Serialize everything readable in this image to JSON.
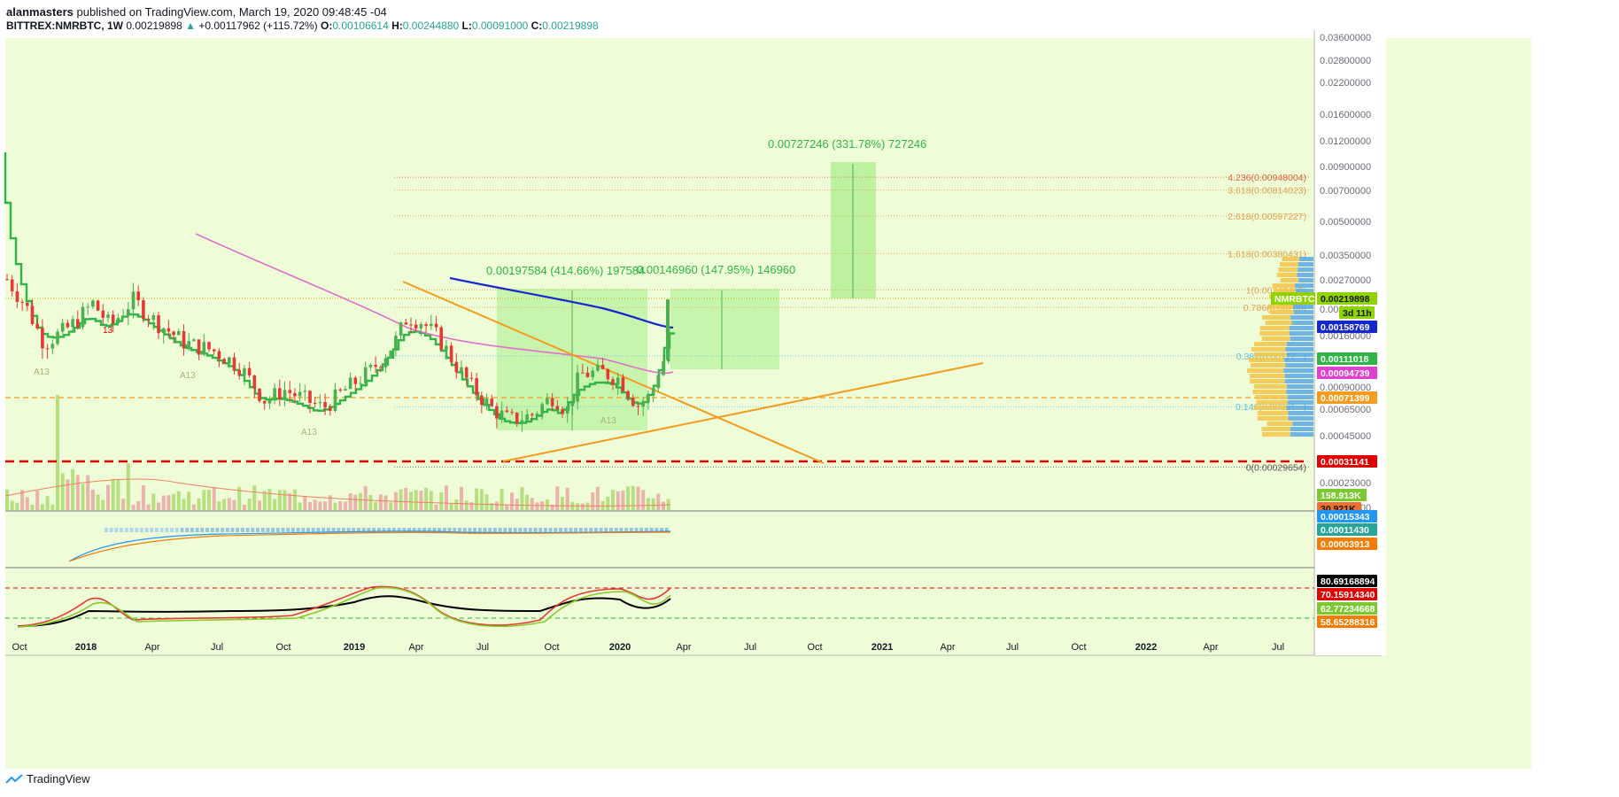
{
  "header": {
    "author": "alanmasters",
    "published": "published on TradingView.com, March 19, 2020 09:48:45 -04",
    "symbol": "BITTREX:NMRBTC, 1W",
    "last": "0.00219898",
    "change": "+0.00117962 (+115.72%)",
    "o_label": "O:",
    "o": "0.00106614",
    "h_label": "H:",
    "h": "0.00244880",
    "l_label": "L:",
    "l": "0.00091000",
    "c_label": "C:",
    "c": "0.00219898"
  },
  "footer": {
    "brand": "TradingView"
  },
  "colors": {
    "background": "#eefcd8",
    "ema_blue": "#1528cc",
    "ma_pink": "#e070c8",
    "stepline_green": "#2fb545",
    "trendline_orange": "#f39c1e",
    "support_red": "#e00000",
    "bull": "#4caf50",
    "bear": "#e53935",
    "measure_fill": "#a9ee8a"
  },
  "annotations": {
    "measure_target": "0.00727246 (331.78%) 727246",
    "measure_1": "0.00197584 (414.66%) 197584",
    "measure_2": "0.00146960 (147.95%) 146960"
  },
  "fib_levels": [
    {
      "label": "4.236(0.00948004)",
      "color": "#e0603a",
      "value": 0.00948004
    },
    {
      "label": "3.618(0.00814023)",
      "color": "#e0a050",
      "value": 0.00814023
    },
    {
      "label": "2.618(0.00597227)",
      "color": "#e0a050",
      "value": 0.00597227
    },
    {
      "label": "1.618(0.00380431)",
      "color": "#e0a050",
      "value": 0.00380431
    },
    {
      "label": "1(0.00246450)",
      "color": "#e0a050",
      "value": 0.0024645
    },
    {
      "label": "0.786(0.00200)",
      "color": "#e0a050",
      "value": 0.002
    },
    {
      "label": "0.382(0.00112...)",
      "color": "#5bc0de",
      "value": 0.00112
    },
    {
      "label": "0.146(0.00061...)",
      "color": "#5bc0de",
      "value": 0.00061
    },
    {
      "label": "0(0.00029654)",
      "color": "#555555",
      "value": 0.00029654
    }
  ],
  "price_axis": {
    "ticks": [
      "0.03600000",
      "0.02800000",
      "0.02200000",
      "0.01600000",
      "0.01200000",
      "0.00900000",
      "0.00700000",
      "0.00500000",
      "0.00350000",
      "0.00270000",
      "0.00210000",
      "0.00160000",
      "0.00120000",
      "0.00090000",
      "0.00065000",
      "0.00045000",
      "0.00031000",
      "0.00023000",
      "0.00019000"
    ],
    "scale": "log"
  },
  "price_badges": [
    {
      "text": "NMRBTC",
      "color": "#8fd400",
      "fg": "#ffffff"
    },
    {
      "text": "0.00219898",
      "color": "#8fd400",
      "fg": "#131722"
    },
    {
      "text": "3d 11h",
      "color": "#8fd400",
      "fg": "#131722"
    },
    {
      "text": "0.00158769",
      "color": "#1528cc",
      "fg": "#ffffff"
    },
    {
      "text": "0.00111018",
      "color": "#2fb545",
      "fg": "#ffffff"
    },
    {
      "text": "0.00094739",
      "color": "#e040d0",
      "fg": "#ffffff"
    },
    {
      "text": "0.00071399",
      "color": "#f39c1e",
      "fg": "#ffffff"
    },
    {
      "text": "0.00031141",
      "color": "#e00000",
      "fg": "#ffffff"
    },
    {
      "text": "158.913K",
      "color": "#7cc832",
      "fg": "#ffffff"
    },
    {
      "text": "30.921K",
      "color": "#f07030",
      "fg": "#131722"
    }
  ],
  "macd_badges": [
    {
      "text": "0.00015343",
      "color": "#2196f3",
      "fg": "#ffffff"
    },
    {
      "text": "0.00011430",
      "color": "#26a69a",
      "fg": "#ffffff"
    },
    {
      "text": "0.00003913",
      "color": "#f57c00",
      "fg": "#ffffff"
    }
  ],
  "rsi_badges": [
    {
      "text": "80.69168894",
      "color": "#000000",
      "fg": "#ffffff"
    },
    {
      "text": "70.15914340",
      "color": "#e00000",
      "fg": "#ffffff"
    },
    {
      "text": "62.77234668",
      "color": "#7cc832",
      "fg": "#ffffff"
    },
    {
      "text": "58.65288316",
      "color": "#f57c00",
      "fg": "#ffffff"
    }
  ],
  "time_axis": [
    "Oct",
    "2018",
    "Apr",
    "Jul",
    "Oct",
    "2019",
    "Apr",
    "Jul",
    "Oct",
    "2020",
    "Apr",
    "Jul",
    "Oct",
    "2021",
    "Apr",
    "Jul",
    "Oct",
    "2022",
    "Apr",
    "Jul"
  ],
  "markers": [
    "13",
    "13",
    "A13",
    "A13",
    "A13",
    "A13"
  ],
  "chart_data": {
    "type": "candlestick",
    "interval": "1W",
    "symbol": "NMRBTC",
    "scale": "log",
    "ylim": [
      0.00019,
      0.036
    ],
    "last_close": 0.00219898,
    "series": [
      {
        "name": "NMRBTC",
        "values": []
      }
    ],
    "indicators": [
      "EMA",
      "MA",
      "Stepline",
      "Volume",
      "MACD",
      "RSI"
    ]
  }
}
